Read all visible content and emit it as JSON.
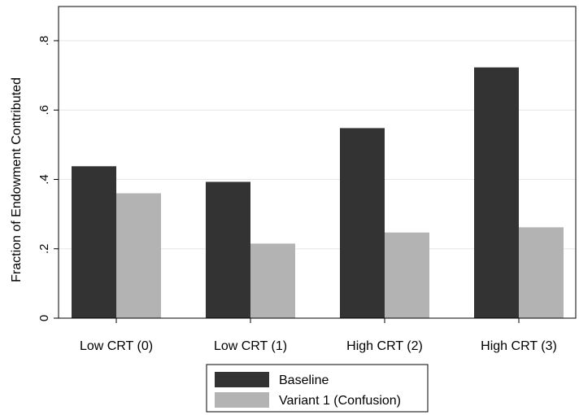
{
  "chart_data": {
    "type": "bar",
    "categories": [
      "Low CRT (0)",
      "Low CRT (1)",
      "High CRT (2)",
      "High CRT (3)"
    ],
    "series": [
      {
        "name": "Baseline",
        "values": [
          0.438,
          0.393,
          0.548,
          0.723
        ],
        "color": "#333333"
      },
      {
        "name": "Variant 1 (Confusion)",
        "values": [
          0.36,
          0.215,
          0.247,
          0.262
        ],
        "color": "#b3b3b3"
      }
    ],
    "title": "",
    "xlabel": "",
    "ylabel": "Fraction of Endowment Contributed",
    "ylim": [
      0,
      0.8
    ],
    "yticks": [
      0,
      0.2,
      0.4,
      0.6,
      0.8
    ],
    "ytick_labels": [
      "0",
      ".2",
      ".4",
      ".6",
      ".8"
    ],
    "grid": true,
    "legend_position": "bottom"
  }
}
